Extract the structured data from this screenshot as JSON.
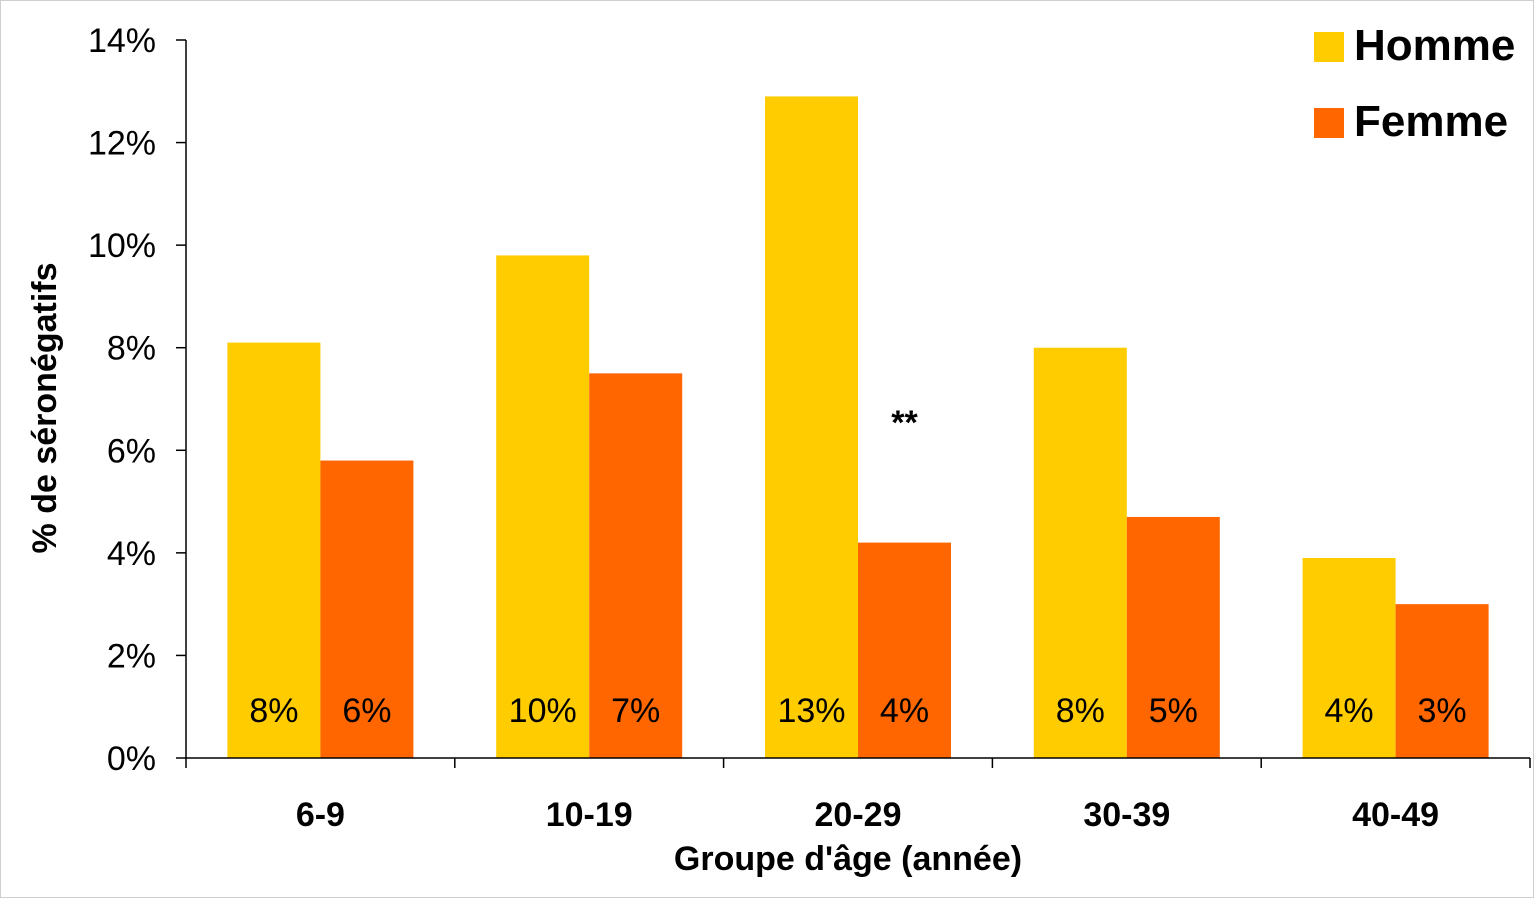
{
  "chart_data": {
    "type": "bar",
    "categories": [
      "6-9",
      "10-19",
      "20-29",
      "30-39",
      "40-49"
    ],
    "series": [
      {
        "name": "Homme",
        "color": "#FFCC00",
        "values": [
          8.1,
          9.8,
          12.9,
          8.0,
          3.9
        ],
        "labels": [
          "8%",
          "10%",
          "13%",
          "8%",
          "4%"
        ]
      },
      {
        "name": "Femme",
        "color": "#FF6600",
        "values": [
          5.8,
          7.5,
          4.2,
          4.7,
          3.0
        ],
        "labels": [
          "6%",
          "7%",
          "4%",
          "5%",
          "3%"
        ]
      }
    ],
    "xlabel": "Groupe d'âge (année)",
    "ylabel": "% de séronégatifs",
    "ylim": [
      0,
      14
    ],
    "yticks": [
      0,
      2,
      4,
      6,
      8,
      10,
      12,
      14
    ],
    "ytick_labels": [
      "0%",
      "2%",
      "4%",
      "6%",
      "8%",
      "10%",
      "12%",
      "14%"
    ],
    "annotations": [
      {
        "category": "20-29",
        "text": "**"
      }
    ],
    "legend_position": "top-right",
    "grid": false
  }
}
